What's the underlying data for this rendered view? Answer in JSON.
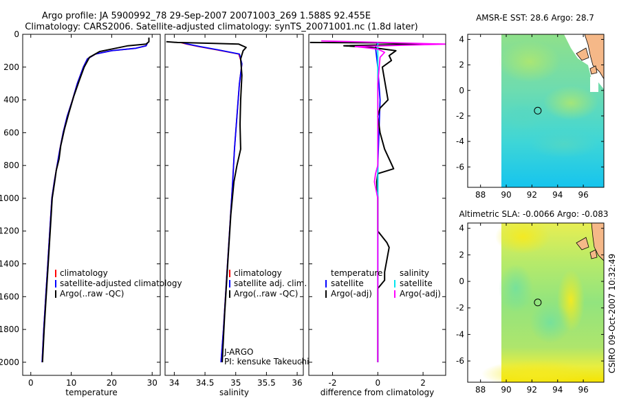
{
  "header": {
    "line1": "Argo profile: JA 5900992_78 29-Sep-2007 20071003_269 1.588S 92.455E",
    "line2": "Climatology: CARS2006. Satellite-adjusted climatology: synTS_20071001.nc (1.8d later)"
  },
  "side_label": "CSIRO 09-Oct-2007 10:32:49",
  "colors": {
    "climatology": "#ff0000",
    "satellite": "#0000ff",
    "argo": "#000000",
    "sal_sat": "#00e5ee",
    "sal_argo": "#ff00ff",
    "land": "#f5b888"
  },
  "chart_data": [
    {
      "type": "line",
      "name": "temperature-profile",
      "xlabel": "temperature",
      "xlim": [
        -2,
        32
      ],
      "ylim": [
        2080,
        0
      ],
      "xticks": [
        "0",
        "10",
        "20",
        "30"
      ],
      "yticks": [
        "0",
        "200",
        "400",
        "600",
        "800",
        "1000",
        "1200",
        "1400",
        "1600",
        "1800",
        "2000"
      ],
      "legend": [
        "climatology",
        "satellite-adjusted climatology",
        "Argo(..raw -QC)"
      ],
      "series": [
        {
          "name": "climatology",
          "color": "#ff0000",
          "points": [
            [
              28.9,
              50
            ],
            [
              28.5,
              70
            ],
            [
              26,
              85
            ],
            [
              20,
              100
            ],
            [
              16,
              120
            ],
            [
              14,
              150
            ],
            [
              13,
              200
            ],
            [
              11.5,
              300
            ],
            [
              10.3,
              400
            ],
            [
              9,
              500
            ],
            [
              8,
              600
            ],
            [
              7.2,
              700
            ],
            [
              6.5,
              800
            ],
            [
              5.8,
              900
            ],
            [
              5.2,
              1000
            ],
            [
              4.7,
              1200
            ],
            [
              4.2,
              1400
            ],
            [
              3.7,
              1600
            ],
            [
              3.2,
              1800
            ],
            [
              2.8,
              2000
            ]
          ]
        },
        {
          "name": "satellite-adjusted climatology",
          "color": "#0000ff",
          "points": [
            [
              28.9,
              50
            ],
            [
              28.5,
              70
            ],
            [
              26,
              85
            ],
            [
              20,
              100
            ],
            [
              16,
              120
            ],
            [
              14,
              150
            ],
            [
              13,
              200
            ],
            [
              11.5,
              300
            ],
            [
              10.3,
              400
            ],
            [
              9,
              500
            ],
            [
              8,
              600
            ],
            [
              7.2,
              700
            ],
            [
              6.5,
              800
            ],
            [
              5.8,
              900
            ],
            [
              5.2,
              1000
            ],
            [
              4.7,
              1200
            ],
            [
              4.2,
              1400
            ],
            [
              3.7,
              1600
            ],
            [
              3.2,
              1800
            ],
            [
              2.8,
              2000
            ]
          ]
        },
        {
          "name": "Argo(..raw -QC)",
          "color": "#000000",
          "points": [
            [
              29.2,
              20
            ],
            [
              29.2,
              45
            ],
            [
              28.5,
              60
            ],
            [
              24,
              70
            ],
            [
              21,
              85
            ],
            [
              17,
              105
            ],
            [
              14.5,
              140
            ],
            [
              13.2,
              200
            ],
            [
              12,
              280
            ],
            [
              10.6,
              380
            ],
            [
              9.4,
              480
            ],
            [
              8.3,
              580
            ],
            [
              7.4,
              680
            ],
            [
              7,
              760
            ],
            [
              6.3,
              830
            ],
            [
              5.9,
              900
            ],
            [
              5.3,
              1000
            ],
            [
              4.8,
              1200
            ],
            [
              4.3,
              1400
            ],
            [
              3.8,
              1600
            ],
            [
              3.3,
              1800
            ],
            [
              2.9,
              2000
            ]
          ]
        }
      ]
    },
    {
      "type": "line",
      "name": "salinity-profile",
      "xlabel": "salinity",
      "xlim": [
        33.85,
        36.1
      ],
      "ylim": [
        2080,
        0
      ],
      "xticks": [
        "34",
        "34.5",
        "35",
        "35.5",
        "36"
      ],
      "legend": [
        "climatology",
        "satellite adj. clim.",
        "Argo(..raw -QC)"
      ],
      "float_labels": [
        "J-ARGO",
        "PI: kensuke Takeuchi"
      ],
      "series": [
        {
          "name": "climatology",
          "color": "#ff0000",
          "points": [
            [
              34.1,
              50
            ],
            [
              34.2,
              60
            ],
            [
              34.4,
              75
            ],
            [
              34.7,
              95
            ],
            [
              35.05,
              120
            ],
            [
              35.1,
              180
            ],
            [
              35.06,
              300
            ],
            [
              35.02,
              500
            ],
            [
              34.98,
              700
            ],
            [
              34.95,
              900
            ],
            [
              34.9,
              1200
            ],
            [
              34.85,
              1500
            ],
            [
              34.8,
              1800
            ],
            [
              34.76,
              2000
            ]
          ]
        },
        {
          "name": "satellite adj. clim.",
          "color": "#0000ff",
          "points": [
            [
              34.12,
              50
            ],
            [
              34.22,
              60
            ],
            [
              34.42,
              75
            ],
            [
              34.72,
              95
            ],
            [
              35.06,
              120
            ],
            [
              35.1,
              180
            ],
            [
              35.06,
              300
            ],
            [
              35.02,
              500
            ],
            [
              34.98,
              700
            ],
            [
              34.95,
              900
            ],
            [
              34.9,
              1200
            ],
            [
              34.85,
              1500
            ],
            [
              34.8,
              1800
            ],
            [
              34.76,
              2000
            ]
          ]
        },
        {
          "name": "Argo(..raw -QC)",
          "color": "#000000",
          "points": [
            [
              33.87,
              45
            ],
            [
              34.05,
              50
            ],
            [
              34.6,
              55
            ],
            [
              35.05,
              60
            ],
            [
              35.17,
              80
            ],
            [
              35.12,
              100
            ],
            [
              35.08,
              150
            ],
            [
              35.1,
              250
            ],
            [
              35.08,
              400
            ],
            [
              35.07,
              550
            ],
            [
              35.08,
              700
            ],
            [
              35.02,
              800
            ],
            [
              34.97,
              900
            ],
            [
              34.92,
              1100
            ],
            [
              34.87,
              1400
            ],
            [
              34.82,
              1700
            ],
            [
              34.78,
              2000
            ]
          ]
        }
      ]
    },
    {
      "type": "line",
      "name": "difference-profile",
      "xlabel": "difference from climatology",
      "xlim": [
        -3.05,
        3.0
      ],
      "ylim": [
        2080,
        0
      ],
      "xticks": [
        "-2",
        "0",
        "2"
      ],
      "legend": [
        "temperature",
        "salinity",
        "satellite",
        "satellite",
        "Argo(-adj)",
        "Argo(-adj)"
      ],
      "series": [
        {
          "name": "temperature satellite",
          "color": "#0000ff",
          "points": [
            [
              0.0,
              50
            ],
            [
              -0.1,
              80
            ],
            [
              0.0,
              200
            ],
            [
              0.1,
              400
            ],
            [
              0.05,
              600
            ],
            [
              0.0,
              800
            ],
            [
              0.0,
              1000
            ],
            [
              0.0,
              1500
            ],
            [
              0.0,
              2000
            ]
          ]
        },
        {
          "name": "temperature Argo(-adj)",
          "color": "#000000",
          "points": [
            [
              -3,
              50
            ],
            [
              0,
              52
            ],
            [
              2.1,
              60
            ],
            [
              -1.5,
              70
            ],
            [
              -0.3,
              80
            ],
            [
              0.8,
              100
            ],
            [
              0.5,
              130
            ],
            [
              0.6,
              160
            ],
            [
              0.2,
              200
            ],
            [
              0.45,
              400
            ],
            [
              0.1,
              450
            ],
            [
              0.0,
              500
            ],
            [
              0.1,
              600
            ],
            [
              0.3,
              700
            ],
            [
              0.6,
              790
            ],
            [
              0.7,
              820
            ],
            [
              0.0,
              850
            ],
            [
              -0.05,
              900
            ],
            [
              0.0,
              1000
            ],
            [
              0.0,
              1200
            ],
            [
              0.4,
              1270
            ],
            [
              0.5,
              1300
            ],
            [
              0.3,
              1450
            ],
            [
              0.3,
              1500
            ],
            [
              0.0,
              1550
            ],
            [
              0.0,
              2000
            ]
          ]
        },
        {
          "name": "salinity satellite",
          "color": "#00e5ee",
          "points": [
            [
              0.0,
              50
            ],
            [
              0.0,
              100
            ],
            [
              0.0,
              500
            ],
            [
              0.0,
              1000
            ],
            [
              0.0,
              1500
            ],
            [
              0.0,
              2000
            ]
          ]
        },
        {
          "name": "salinity Argo(-adj)",
          "color": "#ff00ff",
          "points": [
            [
              -2.5,
              40
            ],
            [
              0.2,
              50
            ],
            [
              3.0,
              60
            ],
            [
              -1.0,
              75
            ],
            [
              0.0,
              90
            ],
            [
              0.3,
              110
            ],
            [
              0.1,
              140
            ],
            [
              0.0,
              300
            ],
            [
              0.0,
              800
            ],
            [
              -0.1,
              850
            ],
            [
              -0.15,
              900
            ],
            [
              0.0,
              1000
            ],
            [
              0.0,
              2000
            ]
          ]
        }
      ]
    },
    {
      "type": "heatmap",
      "name": "sst-map",
      "title": "AMSR-E SST: 28.6  Argo: 28.7",
      "xlim": [
        87,
        97.6
      ],
      "ylim": [
        -7.6,
        4.4
      ],
      "xticks": [
        "88",
        "90",
        "92",
        "94",
        "96"
      ],
      "yticks": [
        "4",
        "2",
        "0",
        "-2",
        "-4",
        "-6"
      ],
      "marker": {
        "lon": 92.455,
        "lat": -1.588
      }
    },
    {
      "type": "heatmap",
      "name": "sla-map",
      "title": "Altimetric SLA: -0.0066  Argo: -0.083",
      "xlim": [
        87,
        97.6
      ],
      "ylim": [
        -7.6,
        4.4
      ],
      "xticks": [
        "88",
        "90",
        "92",
        "94",
        "96"
      ],
      "yticks": [
        "4",
        "2",
        "0",
        "-2",
        "-4",
        "-6"
      ],
      "marker": {
        "lon": 92.455,
        "lat": -1.588
      }
    }
  ]
}
